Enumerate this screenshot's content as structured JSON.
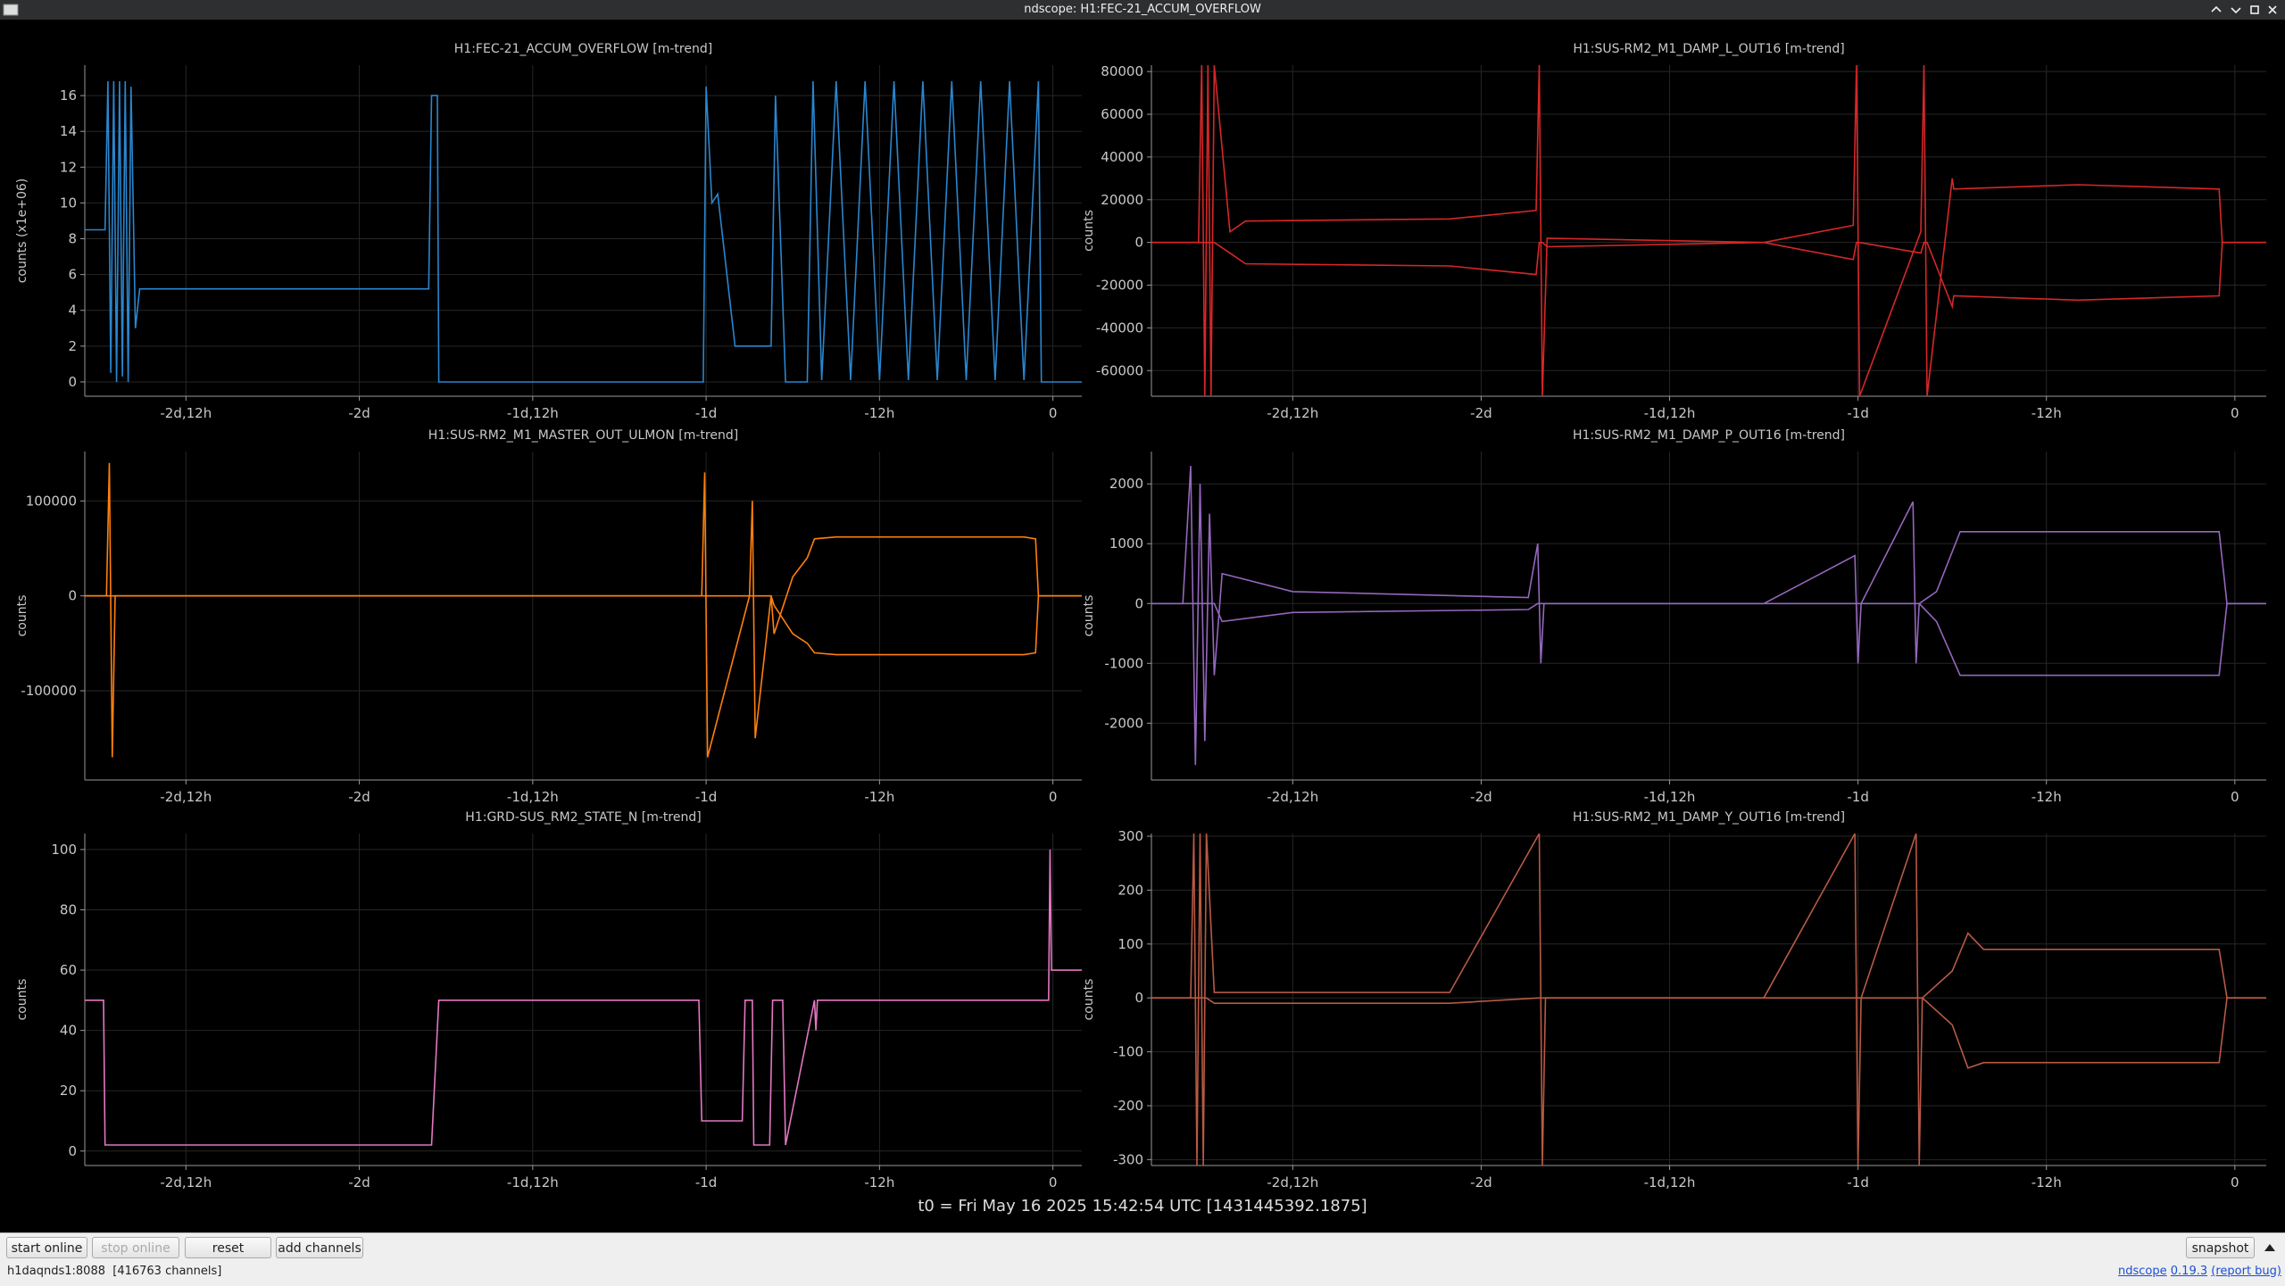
{
  "window": {
    "title": "ndscope: H1:FEC-21_ACCUM_OVERFLOW"
  },
  "t0": "t0 = Fri May 16 2025 15:42:54 UTC [1431445392.1875]",
  "buttons": {
    "start": "start online",
    "stop": "stop online",
    "reset": "reset",
    "add": "add channels",
    "snapshot": "snapshot"
  },
  "status": {
    "server": "h1daqnds1:8088",
    "channels": "[416763 channels]",
    "app": "ndscope",
    "version": "0.19.3",
    "report": "(report bug)"
  },
  "chart_data": [
    {
      "type": "line",
      "title": "H1:FEC-21_ACCUM_OVERFLOW [m-trend]",
      "ylabel": "counts (x1e+06)",
      "grid": true,
      "x": [
        -67,
        -65.6,
        -65.4,
        -65.2,
        -65,
        -64.8,
        -64.6,
        -64.4,
        -64.2,
        -64,
        -63.8,
        -63.5,
        -63.2,
        -43.2,
        -43,
        -42.6,
        -42.5,
        -24.2,
        -24,
        -23.6,
        -23.2,
        -22,
        -21.8,
        -19.5,
        -19.2,
        -18.5,
        -18,
        -17,
        -16.6,
        -16,
        -15,
        -14,
        -13,
        -12,
        -11,
        -10,
        -9,
        -8,
        -7,
        -6,
        -5,
        -4,
        -3,
        -2,
        -1,
        -0.8,
        2
      ],
      "series": [
        {
          "color": "#2a86cf",
          "values": [
            8.5,
            8.5,
            16.8,
            0.5,
            16.8,
            0,
            16.8,
            0.3,
            16.8,
            0,
            16.5,
            3,
            5.2,
            5.2,
            16,
            16,
            0,
            0,
            16.5,
            10,
            10.5,
            2,
            2,
            2,
            16,
            0,
            0,
            0,
            16.8,
            0.1,
            16.8,
            0.1,
            16.8,
            0.1,
            16.8,
            0.1,
            16.8,
            0.1,
            16.8,
            0.1,
            16.8,
            0.1,
            16.8,
            0.1,
            16.8,
            0,
            0
          ]
        }
      ],
      "xlim": [
        -67,
        2
      ],
      "ylim": [
        -0.8,
        17.7
      ],
      "xticks": [
        {
          "value": -60,
          "label": "-2d,12h"
        },
        {
          "value": -48,
          "label": "-2d"
        },
        {
          "value": -36,
          "label": "-1d,12h"
        },
        {
          "value": -24,
          "label": "-1d"
        },
        {
          "value": -12,
          "label": "-12h"
        },
        0
      ],
      "yticks": [
        0,
        2,
        4,
        6,
        8,
        10,
        12,
        14,
        16
      ]
    },
    {
      "type": "line",
      "title": "H1:SUS-RM2_M1_DAMP_L_OUT16 [m-trend]",
      "ylabel": "counts",
      "grid": true,
      "x": [
        -69,
        -66,
        -65.8,
        -65.6,
        -65.4,
        -65.2,
        -65,
        -64,
        -63,
        -50,
        -44.5,
        -44.3,
        -44.1,
        -43.8,
        -30,
        -24.3,
        -24.1,
        -23.9,
        -20,
        -19.8,
        -19.6,
        -18,
        -17.9,
        -10,
        -1,
        -0.8,
        2
      ],
      "series": [
        {
          "color": "#d62728",
          "values": [
            0,
            0,
            83000,
            -72000,
            83000,
            -72000,
            83000,
            5000,
            10000,
            11000,
            15000,
            83000,
            -72000,
            2000,
            0,
            8000,
            83000,
            -72000,
            5000,
            83000,
            -72000,
            30000,
            25000,
            27000,
            25000,
            0,
            0
          ]
        },
        {
          "color": "#d62728",
          "values": [
            0,
            0,
            0,
            0,
            0,
            0,
            0,
            -5000,
            -10000,
            -11000,
            -15000,
            0,
            0,
            -2000,
            0,
            -8000,
            0,
            0,
            -5000,
            0,
            0,
            -30000,
            -25000,
            -27000,
            -25000,
            0,
            0
          ]
        }
      ],
      "xlim": [
        -69,
        2
      ],
      "ylim": [
        -72000,
        83000
      ],
      "xticks": [
        {
          "value": -60,
          "label": "-2d,12h"
        },
        {
          "value": -48,
          "label": "-2d"
        },
        {
          "value": -36,
          "label": "-1d,12h"
        },
        {
          "value": -24,
          "label": "-1d"
        },
        {
          "value": -12,
          "label": "-12h"
        },
        0
      ],
      "yticks": [
        -60000,
        -40000,
        -20000,
        0,
        20000,
        40000,
        60000,
        80000
      ]
    },
    {
      "type": "line",
      "title": "H1:SUS-RM2_M1_MASTER_OUT_ULMON [m-trend]",
      "ylabel": "counts",
      "grid": true,
      "x": [
        -67,
        -65.5,
        -65.3,
        -65.1,
        -64.9,
        -40,
        -24.3,
        -24.1,
        -23.9,
        -21,
        -20.8,
        -20.6,
        -19.5,
        -19.3,
        -18,
        -17,
        -16.5,
        -15,
        -2,
        -1.2,
        -1,
        2
      ],
      "series": [
        {
          "color": "#ff7f0e",
          "values": [
            0,
            0,
            140000,
            -170000,
            0,
            0,
            0,
            130000,
            -170000,
            0,
            100000,
            -150000,
            0,
            -40000,
            20000,
            40000,
            60000,
            62000,
            62000,
            60000,
            0,
            0
          ]
        },
        {
          "color": "#ff7f0e",
          "values": [
            0,
            0,
            0,
            0,
            0,
            0,
            0,
            0,
            0,
            0,
            0,
            0,
            0,
            -10000,
            -40000,
            -50000,
            -60000,
            -62000,
            -62000,
            -60000,
            0,
            0
          ]
        }
      ],
      "xlim": [
        -67,
        2
      ],
      "ylim": [
        -194000,
        152000
      ],
      "xticks": [
        {
          "value": -60,
          "label": "-2d,12h"
        },
        {
          "value": -48,
          "label": "-2d"
        },
        {
          "value": -36,
          "label": "-1d,12h"
        },
        {
          "value": -24,
          "label": "-1d"
        },
        {
          "value": -12,
          "label": "-12h"
        },
        0
      ],
      "yticks": [
        -100000,
        0,
        100000
      ]
    },
    {
      "type": "line",
      "title": "H1:SUS-RM2_M1_DAMP_P_OUT16 [m-trend]",
      "ylabel": "counts",
      "grid": true,
      "x": [
        -69,
        -67,
        -66.5,
        -66.2,
        -65.9,
        -65.6,
        -65.3,
        -65,
        -64.5,
        -60,
        -45,
        -44.4,
        -44.2,
        -44,
        -30,
        -24.2,
        -24,
        -23.8,
        -20.5,
        -20.3,
        -20.1,
        -19,
        -17.5,
        -17,
        -1,
        -0.5,
        2
      ],
      "series": [
        {
          "color": "#9467bd",
          "values": [
            0,
            0,
            2300,
            -2700,
            2000,
            -2300,
            1500,
            -1200,
            500,
            200,
            100,
            1000,
            -1000,
            0,
            0,
            800,
            -1000,
            0,
            1700,
            -1000,
            0,
            200,
            1200,
            1200,
            1200,
            0,
            0
          ]
        },
        {
          "color": "#9467bd",
          "values": [
            0,
            0,
            0,
            0,
            0,
            0,
            0,
            0,
            -300,
            -150,
            -100,
            0,
            0,
            0,
            0,
            0,
            0,
            0,
            0,
            0,
            0,
            -300,
            -1200,
            -1200,
            -1200,
            0,
            0
          ]
        }
      ],
      "xlim": [
        -69,
        2
      ],
      "ylim": [
        -2950,
        2540
      ],
      "xticks": [
        {
          "value": -60,
          "label": "-2d,12h"
        },
        {
          "value": -48,
          "label": "-2d"
        },
        {
          "value": -36,
          "label": "-1d,12h"
        },
        {
          "value": -24,
          "label": "-1d"
        },
        {
          "value": -12,
          "label": "-12h"
        },
        0
      ],
      "yticks": [
        -2000,
        -1000,
        0,
        1000,
        2000
      ]
    },
    {
      "type": "line",
      "title": "H1:GRD-SUS_RM2_STATE_N [m-trend]",
      "ylabel": "counts",
      "grid": true,
      "x": [
        -67,
        -65.7,
        -65.6,
        -43,
        -42.5,
        -24.5,
        -24.3,
        -21.5,
        -21.3,
        -20.8,
        -20.7,
        -19.6,
        -19.4,
        -18.7,
        -18.5,
        -16.5,
        -16.4,
        -16.3,
        -0.3,
        -0.2,
        -0.1,
        2
      ],
      "series": [
        {
          "color": "#e377c2",
          "values": [
            50,
            50,
            2,
            2,
            50,
            50,
            10,
            10,
            50,
            50,
            2,
            2,
            50,
            50,
            2,
            50,
            40,
            50,
            50,
            100,
            60,
            60
          ]
        }
      ],
      "xlim": [
        -67,
        2
      ],
      "ylim": [
        -4.8,
        105.3
      ],
      "xticks": [
        {
          "value": -60,
          "label": "-2d,12h"
        },
        {
          "value": -48,
          "label": "-2d"
        },
        {
          "value": -36,
          "label": "-1d,12h"
        },
        {
          "value": -24,
          "label": "-1d"
        },
        {
          "value": -12,
          "label": "-12h"
        },
        0
      ],
      "yticks": [
        0,
        20,
        40,
        60,
        80,
        100
      ]
    },
    {
      "type": "line",
      "title": "H1:SUS-RM2_M1_DAMP_Y_OUT16 [m-trend]",
      "ylabel": "counts",
      "grid": true,
      "x": [
        -69,
        -66.5,
        -66.3,
        -66.1,
        -65.9,
        -65.7,
        -65.5,
        -65,
        -50,
        -44.3,
        -44.1,
        -43.9,
        -30,
        -24.2,
        -24,
        -23.8,
        -20.3,
        -20.1,
        -19.9,
        -18,
        -17,
        -16,
        -1,
        -0.5,
        2
      ],
      "series": [
        {
          "color": "#b85a45",
          "values": [
            0,
            0,
            305,
            -311,
            305,
            -311,
            305,
            10,
            10,
            305,
            -311,
            0,
            0,
            305,
            -311,
            0,
            305,
            -311,
            0,
            50,
            120,
            90,
            90,
            0,
            0
          ]
        },
        {
          "color": "#b85a45",
          "values": [
            0,
            0,
            0,
            0,
            0,
            0,
            0,
            -10,
            -10,
            0,
            0,
            0,
            0,
            0,
            0,
            0,
            0,
            0,
            0,
            -50,
            -130,
            -120,
            -120,
            0,
            0
          ]
        }
      ],
      "xlim": [
        -69,
        2
      ],
      "ylim": [
        -311,
        305
      ],
      "xticks": [
        {
          "value": -60,
          "label": "-2d,12h"
        },
        {
          "value": -48,
          "label": "-2d"
        },
        {
          "value": -36,
          "label": "-1d,12h"
        },
        {
          "value": -24,
          "label": "-1d"
        },
        {
          "value": -12,
          "label": "-12h"
        },
        0
      ],
      "yticks": [
        -300,
        -200,
        -100,
        0,
        100,
        200,
        300
      ]
    }
  ]
}
